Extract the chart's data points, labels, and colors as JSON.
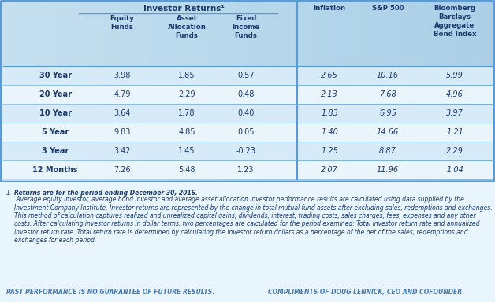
{
  "row_labels": [
    "30 Year",
    "20 Year",
    "10 Year",
    "5 Year",
    "3 Year",
    "12 Months"
  ],
  "data": [
    [
      3.98,
      1.85,
      0.57,
      2.65,
      10.16,
      5.99
    ],
    [
      4.79,
      2.29,
      0.48,
      2.13,
      7.68,
      4.96
    ],
    [
      3.64,
      1.78,
      0.4,
      1.83,
      6.95,
      3.97
    ],
    [
      9.83,
      4.85,
      0.05,
      1.4,
      14.66,
      1.21
    ],
    [
      3.42,
      1.45,
      -0.23,
      1.25,
      8.87,
      2.29
    ],
    [
      7.26,
      5.48,
      1.23,
      2.07,
      11.96,
      1.04
    ]
  ],
  "header_group_label": "Investor Returns¹",
  "col_headers": [
    "Equity\nFunds",
    "Asset\nAllocation\nFunds",
    "Fixed\nIncome\nFunds",
    "Inflation",
    "S&P 500",
    "Bloomberg\nBarclays\nAggregate\nBond Index"
  ],
  "footnote_superscript": "1",
  "footnote_bold": "Returns are for the period ending December 30, 2016.",
  "footnote_rest": " Average equity investor, average bond investor and average asset allocation investor performance results are calculated using data supplied by the Investment Company Institute. Investor returns are represented by the change in total mutual fund assets after excluding sales, redemptions and exchanges. This method of calculation captures realized and unrealized capital gains, dividends, interest, trading costs, sales charges, fees, expenses and any other costs. After calculating investor returns in dollar terms, two percentages are calculated for the period examined: Total investor return rate and annualized investor return rate. Total return rate is determined by calculating the investor return dollars as a percentage of the net of the sales, redemptions and exchanges for each period.",
  "footer_left": "PAST PERFORMANCE IS NO GUARANTEE OF FUTURE RESULTS.",
  "footer_right": "COMPLIMENTS OF DOUG LENNICK, CEO AND COFOUNDER",
  "text_color": "#1b3a6b",
  "divider_color": "#5b9bd5",
  "row_color_even": "#d6eaf8",
  "row_color_odd": "#eaf4fb",
  "header_bg": "#c5dff0",
  "bg_top": "#a8d4ea",
  "bg_bottom": "#e8f5fc",
  "footnote_color": "#1b3a6b",
  "footer_color": "#4a7aab"
}
